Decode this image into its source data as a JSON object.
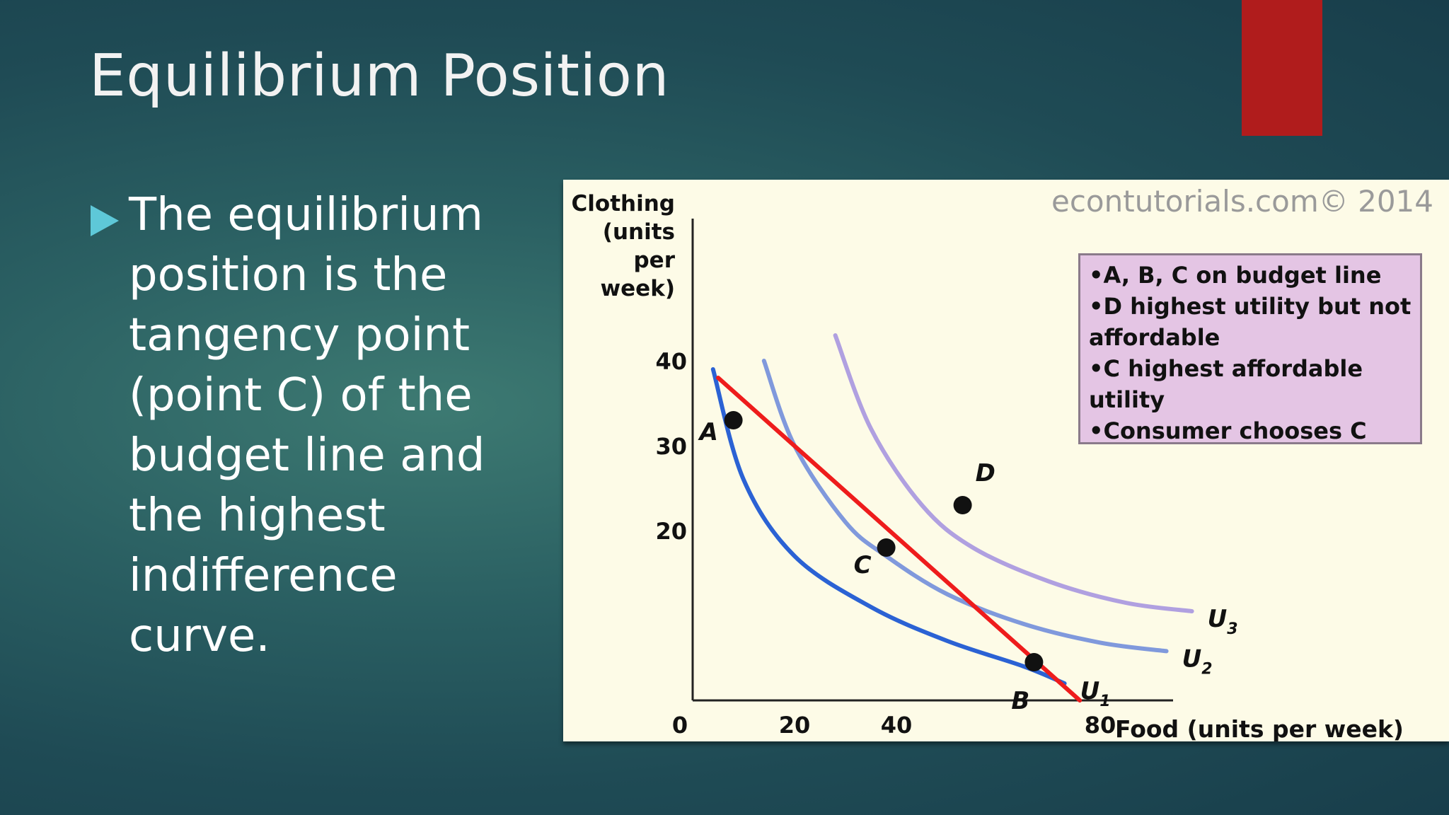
{
  "slide": {
    "title": "Equilibrium Position",
    "bullet": "The equilibrium position is the tangency point (point C) of the budget line and the highest indifference curve.",
    "colors": {
      "background": "#24535a",
      "title_text": "#f2f2f2",
      "bullet_marker": "#5ec8d8",
      "accent_tab": "#b01c1c"
    }
  },
  "chart_data": {
    "type": "line",
    "watermark": "econtutorials.com© 2014",
    "ylabel_lines": [
      "Clothing",
      "(units per",
      "week)"
    ],
    "xlabel": "Food (units per week)",
    "xlim": [
      0,
      100
    ],
    "ylim": [
      0,
      45
    ],
    "x_ticks": [
      "0",
      "20",
      "40",
      "80"
    ],
    "y_ticks": [
      "20",
      "30",
      "40"
    ],
    "grid": false,
    "series": [
      {
        "color": "#ee1c1c",
        "x": [
          5,
          76
        ],
        "y": [
          38,
          0
        ]
      },
      {
        "name": "U1",
        "color": "#2b62d4",
        "x": [
          4,
          10,
          20,
          35,
          50,
          65,
          73
        ],
        "y": [
          39,
          26,
          17,
          11,
          7,
          4,
          2
        ]
      },
      {
        "name": "U2",
        "color": "#8099dc",
        "x": [
          14,
          20,
          30,
          38,
          50,
          65,
          80,
          93
        ],
        "y": [
          40,
          30,
          21,
          17,
          12.5,
          9,
          6.8,
          5.8
        ]
      },
      {
        "name": "U3",
        "color": "#b0a0e0",
        "x": [
          28,
          35,
          45,
          55,
          70,
          85,
          98
        ],
        "y": [
          43,
          32,
          23,
          18,
          14,
          11.5,
          10.5
        ]
      }
    ],
    "points": [
      {
        "label": "A",
        "x": 8,
        "y": 33
      },
      {
        "label": "C",
        "x": 38,
        "y": 18
      },
      {
        "label": "B",
        "x": 67,
        "y": 4.5
      },
      {
        "label": "D",
        "x": 53,
        "y": 23
      }
    ],
    "notes": [
      "•A, B, C on budget line",
      "•D highest utility but not",
      "affordable",
      "•C highest affordable",
      "utility",
      "•Consumer chooses C"
    ]
  }
}
